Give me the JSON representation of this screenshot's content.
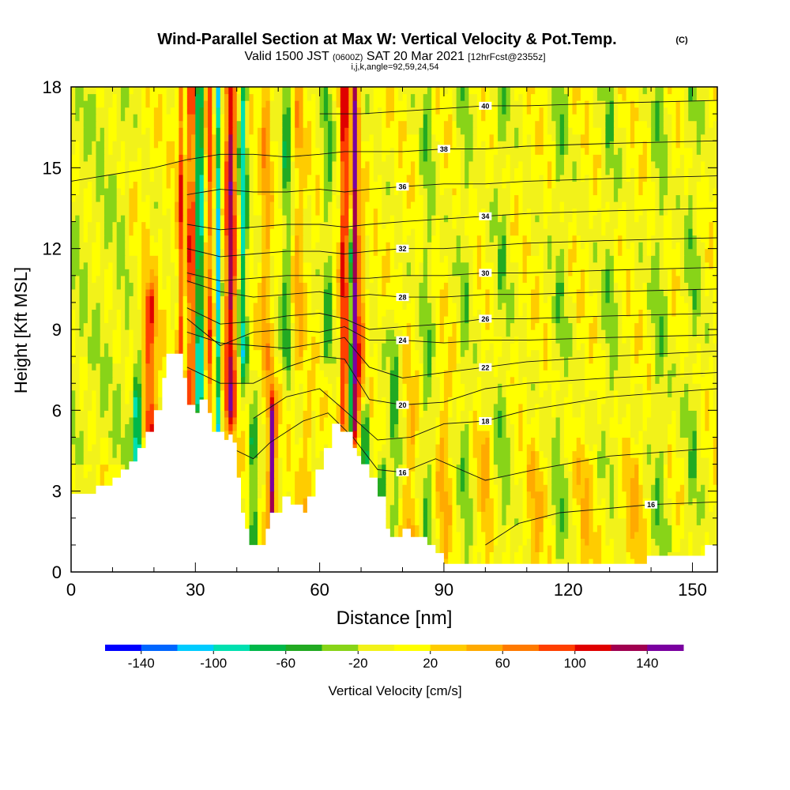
{
  "title": {
    "main": "Wind-Parallel Section at Max W: Vertical Velocity & Pot.Temp.",
    "copyright": "(C)",
    "valid_prefix": "Valid 1500 JST",
    "valid_utc": "(0600Z)",
    "valid_date": "SAT 20 Mar 2021",
    "forecast": "[12hrFcst@2355z]",
    "indices": "i,j,k,angle=92,59,24,54"
  },
  "chart_data": {
    "type": "heatmap",
    "xlabel": "Distance [nm]",
    "ylabel": "Height [Kft MSL]",
    "xlim": [
      0,
      156
    ],
    "ylim": [
      0,
      18
    ],
    "x_ticks": [
      0,
      30,
      60,
      90,
      120,
      150
    ],
    "y_ticks": [
      0,
      3,
      6,
      9,
      12,
      15,
      18
    ],
    "colorbar": {
      "label": "Vertical Velocity [cm/s]",
      "tick_labels": [
        "-140",
        "-100",
        "-60",
        "-20",
        "20",
        "60",
        "100",
        "140"
      ],
      "bins": [
        -160,
        -140,
        -120,
        -100,
        -80,
        -60,
        -40,
        -20,
        0,
        20,
        40,
        60,
        80,
        100,
        120,
        140,
        160
      ],
      "colors": [
        "#0000ff",
        "#0066ff",
        "#00ccff",
        "#00e0b0",
        "#00b84a",
        "#22aa22",
        "#88d418",
        "#f2f21a",
        "#ffff00",
        "#ffcc00",
        "#ffaa00",
        "#ff7a00",
        "#ff4000",
        "#e00000",
        "#a00050",
        "#7a00a0"
      ]
    },
    "terrain_kft": [
      [
        0,
        2.9
      ],
      [
        6,
        3.2
      ],
      [
        10,
        3.5
      ],
      [
        12,
        3.8
      ],
      [
        14,
        4.1
      ],
      [
        16,
        4.6
      ],
      [
        18,
        5.2
      ],
      [
        20,
        6.0
      ],
      [
        22,
        7.2
      ],
      [
        23,
        8.1
      ],
      [
        25,
        8.1
      ],
      [
        27,
        7.2
      ],
      [
        28,
        6.2
      ],
      [
        30,
        5.9
      ],
      [
        31,
        6.4
      ],
      [
        32,
        6.4
      ],
      [
        33,
        5.9
      ],
      [
        34,
        5.2
      ],
      [
        36,
        5.2
      ],
      [
        37,
        4.9
      ],
      [
        38,
        5.1
      ],
      [
        39,
        4.8
      ],
      [
        40,
        3.5
      ],
      [
        41,
        2.2
      ],
      [
        42,
        1.6
      ],
      [
        43,
        1.0
      ],
      [
        46,
        1.0
      ],
      [
        47,
        1.6
      ],
      [
        48,
        2.2
      ],
      [
        50,
        2.2
      ],
      [
        51,
        2.8
      ],
      [
        52,
        2.8
      ],
      [
        53,
        2.5
      ],
      [
        55,
        2.5
      ],
      [
        56,
        2.2
      ],
      [
        57,
        2.8
      ],
      [
        59,
        3.8
      ],
      [
        61,
        4.6
      ],
      [
        63,
        5.5
      ],
      [
        64,
        5.5
      ],
      [
        65,
        5.2
      ],
      [
        67,
        5.2
      ],
      [
        68,
        4.6
      ],
      [
        69,
        4.3
      ],
      [
        70,
        4.0
      ],
      [
        72,
        3.5
      ],
      [
        74,
        2.8
      ],
      [
        76,
        1.6
      ],
      [
        77,
        1.3
      ],
      [
        79,
        1.3
      ],
      [
        80,
        1.6
      ],
      [
        82,
        1.3
      ],
      [
        84,
        1.3
      ],
      [
        86,
        1.0
      ],
      [
        88,
        0.7
      ],
      [
        90,
        0.3
      ],
      [
        138,
        0.3
      ],
      [
        139,
        0.6
      ],
      [
        152,
        0.6
      ],
      [
        153,
        1.0
      ],
      [
        156,
        1.0
      ]
    ],
    "theta_contours": [
      {
        "label": "16",
        "points": [
          [
            100,
            1.0
          ],
          [
            108,
            1.8
          ],
          [
            118,
            2.2
          ],
          [
            140,
            2.5
          ],
          [
            156,
            2.6
          ]
        ]
      },
      {
        "label": "16",
        "points": [
          [
            40,
            4.5
          ],
          [
            44,
            4.2
          ],
          [
            48,
            4.8
          ],
          [
            56,
            5.6
          ],
          [
            62,
            5.9
          ],
          [
            68,
            5.0
          ],
          [
            74,
            3.8
          ],
          [
            80,
            3.7
          ],
          [
            88,
            4.2
          ],
          [
            100,
            3.4
          ],
          [
            112,
            3.8
          ],
          [
            130,
            4.3
          ],
          [
            156,
            4.6
          ]
        ]
      },
      {
        "label": "18",
        "points": [
          [
            44,
            5.7
          ],
          [
            52,
            6.5
          ],
          [
            60,
            6.8
          ],
          [
            66,
            6.0
          ],
          [
            74,
            4.9
          ],
          [
            82,
            5.0
          ],
          [
            90,
            5.5
          ],
          [
            100,
            5.6
          ],
          [
            110,
            6.0
          ],
          [
            130,
            6.5
          ],
          [
            156,
            6.8
          ]
        ]
      },
      {
        "label": "20",
        "points": [
          [
            28,
            7.6
          ],
          [
            36,
            7.0
          ],
          [
            44,
            7.0
          ],
          [
            52,
            7.6
          ],
          [
            60,
            8.0
          ],
          [
            66,
            7.9
          ],
          [
            72,
            6.4
          ],
          [
            80,
            6.2
          ],
          [
            90,
            6.3
          ],
          [
            100,
            6.8
          ],
          [
            110,
            7.0
          ],
          [
            130,
            7.2
          ],
          [
            156,
            7.4
          ]
        ]
      },
      {
        "label": "22",
        "points": [
          [
            28,
            8.9
          ],
          [
            36,
            8.5
          ],
          [
            44,
            8.4
          ],
          [
            52,
            8.3
          ],
          [
            60,
            8.5
          ],
          [
            66,
            8.7
          ],
          [
            72,
            7.6
          ],
          [
            80,
            7.2
          ],
          [
            90,
            7.4
          ],
          [
            100,
            7.6
          ],
          [
            110,
            7.8
          ],
          [
            130,
            8.0
          ],
          [
            156,
            8.2
          ]
        ]
      },
      {
        "label": "24",
        "points": [
          [
            28,
            9.4
          ],
          [
            36,
            8.4
          ],
          [
            44,
            8.9
          ],
          [
            52,
            9.0
          ],
          [
            60,
            8.9
          ],
          [
            66,
            9.1
          ],
          [
            72,
            8.6
          ],
          [
            80,
            8.6
          ],
          [
            90,
            8.5
          ],
          [
            100,
            8.6
          ],
          [
            110,
            8.6
          ],
          [
            130,
            8.7
          ],
          [
            156,
            8.8
          ]
        ]
      },
      {
        "label": "26",
        "points": [
          [
            28,
            9.8
          ],
          [
            36,
            9.2
          ],
          [
            44,
            9.3
          ],
          [
            52,
            9.5
          ],
          [
            60,
            9.6
          ],
          [
            66,
            9.4
          ],
          [
            72,
            9.0
          ],
          [
            80,
            9.1
          ],
          [
            90,
            9.2
          ],
          [
            100,
            9.4
          ],
          [
            110,
            9.4
          ],
          [
            130,
            9.5
          ],
          [
            156,
            9.6
          ]
        ]
      },
      {
        "label": "28",
        "points": [
          [
            28,
            10.8
          ],
          [
            36,
            10.4
          ],
          [
            44,
            10.2
          ],
          [
            52,
            10.3
          ],
          [
            60,
            10.4
          ],
          [
            66,
            10.2
          ],
          [
            72,
            10.3
          ],
          [
            80,
            10.2
          ],
          [
            90,
            10.2
          ],
          [
            100,
            10.3
          ],
          [
            110,
            10.3
          ],
          [
            130,
            10.4
          ],
          [
            156,
            10.5
          ]
        ]
      },
      {
        "label": "30",
        "points": [
          [
            28,
            11.1
          ],
          [
            36,
            10.8
          ],
          [
            44,
            10.9
          ],
          [
            52,
            11.0
          ],
          [
            60,
            11.0
          ],
          [
            66,
            10.9
          ],
          [
            72,
            10.9
          ],
          [
            80,
            11.0
          ],
          [
            90,
            11.0
          ],
          [
            100,
            11.1
          ],
          [
            110,
            11.1
          ],
          [
            130,
            11.2
          ],
          [
            156,
            11.3
          ]
        ]
      },
      {
        "label": "32",
        "points": [
          [
            28,
            12.0
          ],
          [
            36,
            11.7
          ],
          [
            44,
            11.8
          ],
          [
            52,
            11.9
          ],
          [
            60,
            11.9
          ],
          [
            66,
            11.8
          ],
          [
            72,
            11.9
          ],
          [
            80,
            12.0
          ],
          [
            90,
            12.0
          ],
          [
            100,
            12.1
          ],
          [
            110,
            12.2
          ],
          [
            130,
            12.3
          ],
          [
            156,
            12.4
          ]
        ]
      },
      {
        "label": "34",
        "points": [
          [
            28,
            12.9
          ],
          [
            36,
            12.7
          ],
          [
            44,
            12.8
          ],
          [
            52,
            12.9
          ],
          [
            60,
            12.9
          ],
          [
            66,
            12.8
          ],
          [
            72,
            12.9
          ],
          [
            80,
            13.0
          ],
          [
            90,
            13.1
          ],
          [
            100,
            13.2
          ],
          [
            110,
            13.3
          ],
          [
            130,
            13.4
          ],
          [
            156,
            13.5
          ]
        ]
      },
      {
        "label": "36",
        "points": [
          [
            28,
            14.0
          ],
          [
            36,
            14.2
          ],
          [
            44,
            14.1
          ],
          [
            52,
            14.1
          ],
          [
            60,
            14.2
          ],
          [
            66,
            14.1
          ],
          [
            72,
            14.2
          ],
          [
            80,
            14.3
          ],
          [
            90,
            14.4
          ],
          [
            100,
            14.4
          ],
          [
            110,
            14.5
          ],
          [
            130,
            14.6
          ],
          [
            156,
            14.7
          ]
        ]
      },
      {
        "label": "38",
        "points": [
          [
            0,
            14.5
          ],
          [
            20,
            15.0
          ],
          [
            28,
            15.3
          ],
          [
            36,
            15.5
          ],
          [
            44,
            15.5
          ],
          [
            52,
            15.4
          ],
          [
            60,
            15.5
          ],
          [
            66,
            15.6
          ],
          [
            72,
            15.6
          ],
          [
            80,
            15.6
          ],
          [
            90,
            15.7
          ],
          [
            100,
            15.7
          ],
          [
            110,
            15.8
          ],
          [
            130,
            15.9
          ],
          [
            156,
            16.0
          ]
        ]
      },
      {
        "label": "40",
        "points": [
          [
            60,
            17.0
          ],
          [
            70,
            17.0
          ],
          [
            80,
            17.1
          ],
          [
            90,
            17.2
          ],
          [
            100,
            17.3
          ],
          [
            110,
            17.3
          ],
          [
            130,
            17.4
          ],
          [
            156,
            17.5
          ]
        ]
      }
    ]
  }
}
